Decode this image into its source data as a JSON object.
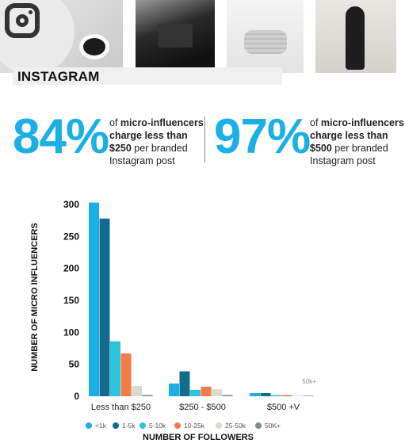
{
  "header": {
    "title": "INSTAGRAM",
    "icon": "instagram-logo-icon"
  },
  "stats": [
    {
      "value": "84%",
      "prefix": "of ",
      "bold": "micro-influencers charge less than $250",
      "suffix": " per branded Instagram post"
    },
    {
      "value": "97%",
      "prefix": "of ",
      "bold": "micro-influencers charge less than $500",
      "suffix": " per branded Instagram post"
    }
  ],
  "chart_data": {
    "type": "bar",
    "xlabel": "NUMBER OF FOLLOWERS",
    "ylabel": "NUMBER OF MICRO INFLUENCERS",
    "categories": [
      "Less than $250",
      "$250 - $500",
      "$500 +V"
    ],
    "ylim": [
      0,
      300
    ],
    "yticks": [
      0,
      50,
      100,
      150,
      200,
      250,
      300
    ],
    "grid": false,
    "legend_position": "bottom",
    "series": [
      {
        "name": "<1k",
        "color": "#1ab0e6",
        "values": [
          303,
          20,
          5
        ]
      },
      {
        "name": "1-5k",
        "color": "#136b8e",
        "values": [
          278,
          39,
          5
        ]
      },
      {
        "name": "5-10k",
        "color": "#2bc4dd",
        "values": [
          86,
          10,
          2
        ]
      },
      {
        "name": "10-25k",
        "color": "#f47b45",
        "values": [
          67,
          15,
          2
        ]
      },
      {
        "name": "25-50k",
        "color": "#d9d9cc",
        "values": [
          16,
          11,
          1
        ]
      },
      {
        "name": "50K+",
        "color": "#7f8c84",
        "values": [
          2,
          2,
          0.5
        ]
      }
    ],
    "annotations": [
      {
        "text": "50k+",
        "category": "$500 +V"
      }
    ]
  }
}
